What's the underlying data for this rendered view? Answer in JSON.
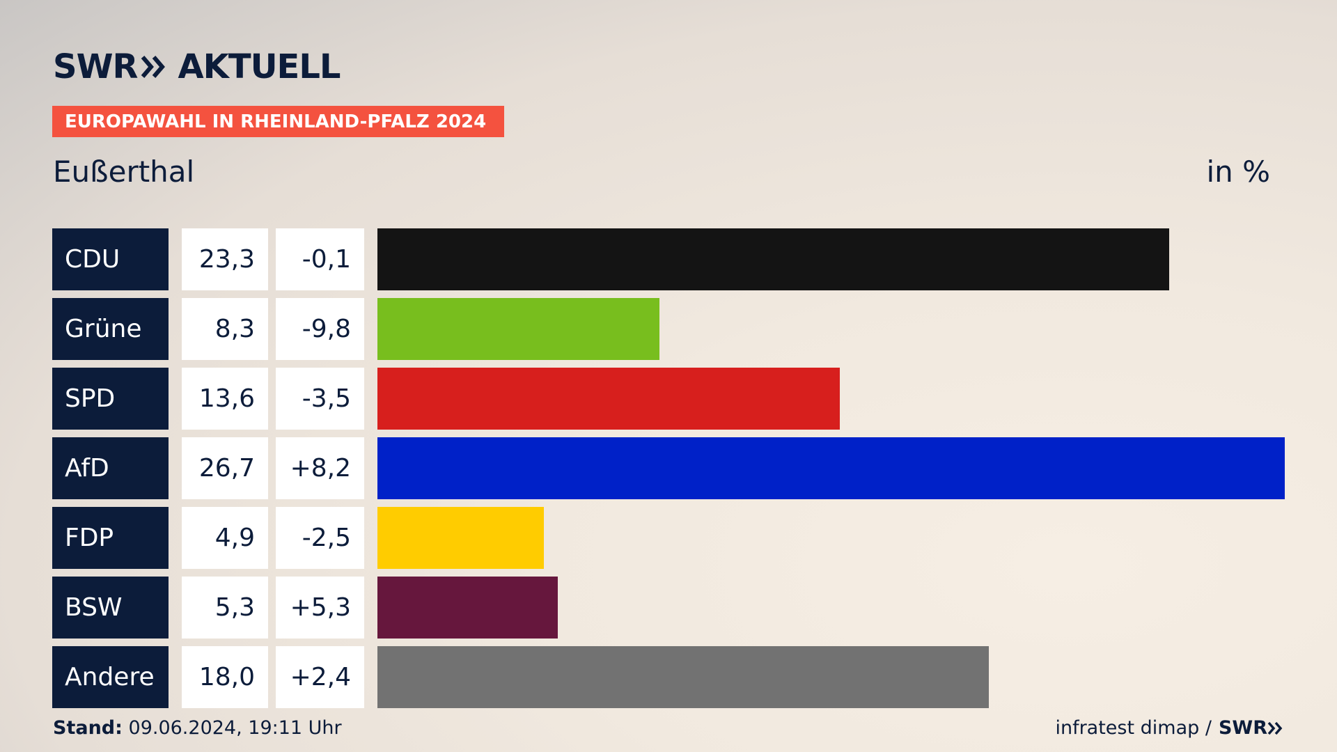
{
  "brand": {
    "logo_left": "SWR",
    "logo_right": "AKTUELL"
  },
  "header": {
    "tag": "EUROPAWAHL IN RHEINLAND-PFALZ 2024",
    "place": "Eußerthal",
    "unit": "in %"
  },
  "chart_data": {
    "type": "bar",
    "orientation": "horizontal",
    "categories": [
      "CDU",
      "Grüne",
      "SPD",
      "AfD",
      "FDP",
      "BSW",
      "Andere"
    ],
    "values": [
      23.3,
      8.3,
      13.6,
      26.7,
      4.9,
      5.3,
      18.0
    ],
    "value_labels": [
      "23,3",
      "8,3",
      "13,6",
      "26,7",
      "4,9",
      "5,3",
      "18,0"
    ],
    "changes": [
      -0.1,
      -9.8,
      -3.5,
      8.2,
      -2.5,
      5.3,
      2.4
    ],
    "change_labels": [
      "-0,1",
      "-9,8",
      "-3,5",
      "+8,2",
      "-2,5",
      "+5,3",
      "+2,4"
    ],
    "colors": [
      "#141414",
      "#78be1e",
      "#d71f1d",
      "#0021c8",
      "#ffcc00",
      "#66173d",
      "#727272"
    ],
    "title": "Eußerthal",
    "ylabel": "in %",
    "xlim": [
      0,
      26.7
    ],
    "grid": false
  },
  "footer": {
    "stand_label": "Stand:",
    "stand_value": "09.06.2024, 19:11 Uhr",
    "source": "infratest dimap /",
    "source_logo": "SWR"
  }
}
